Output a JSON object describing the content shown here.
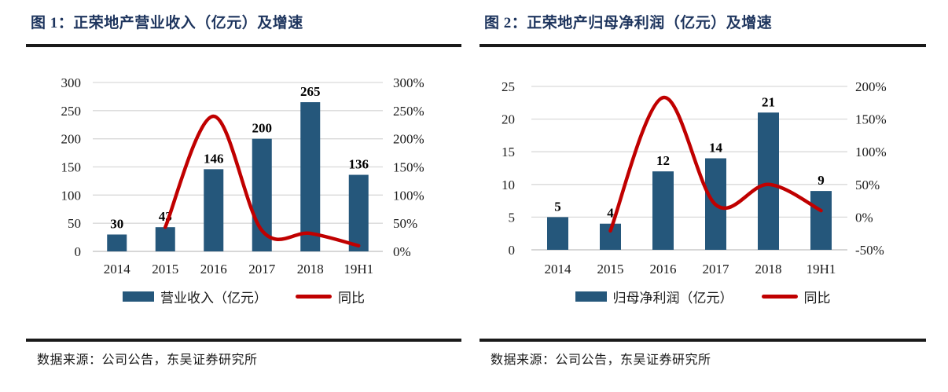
{
  "palette": {
    "bar_fill": "#25577B",
    "line_stroke": "#C00000",
    "title_color": "#1E355E",
    "grid_color": "#D9D9D9",
    "axis_color": "#BFBFBF",
    "rule_color": "#1A1A1A",
    "text_color": "#1A1A1A",
    "value_label_color": "#000000"
  },
  "charts": [
    {
      "title": "图 1：正荣地产营业收入（亿元）及增速",
      "legend": {
        "bar_label": "营业收入（亿元）",
        "line_label": "同比"
      },
      "source": "数据来源：公司公告，东吴证券研究所"
    },
    {
      "title": "图 2：正荣地产归母净利润（亿元）及增速",
      "legend": {
        "bar_label": "归母净利润（亿元）",
        "line_label": "同比"
      },
      "source": "数据来源：公司公告，东吴证券研究所"
    }
  ],
  "chart_data": [
    {
      "type": "bar+line",
      "title": "正荣地产营业收入（亿元）及增速",
      "categories": [
        "2014",
        "2015",
        "2016",
        "2017",
        "2018",
        "19H1"
      ],
      "series": [
        {
          "name": "营业收入（亿元）",
          "type": "bar",
          "axis": "left",
          "values": [
            30,
            43,
            146,
            200,
            265,
            136
          ]
        },
        {
          "name": "同比",
          "type": "line",
          "axis": "right",
          "unit": "%",
          "values": [
            null,
            43,
            240,
            37,
            32,
            10
          ]
        }
      ],
      "left_axis": {
        "min": 0,
        "max": 300,
        "step": 50,
        "labels": [
          "0",
          "50",
          "100",
          "150",
          "200",
          "250",
          "300"
        ]
      },
      "right_axis": {
        "min": 0,
        "max": 300,
        "step": 50,
        "labels": [
          "0%",
          "50%",
          "100%",
          "150%",
          "200%",
          "250%",
          "300%"
        ]
      },
      "grid": true,
      "legend_position": "bottom"
    },
    {
      "type": "bar+line",
      "title": "正荣地产归母净利润（亿元）及增速",
      "categories": [
        "2014",
        "2015",
        "2016",
        "2017",
        "2018",
        "19H1"
      ],
      "series": [
        {
          "name": "归母净利润（亿元）",
          "type": "bar",
          "axis": "left",
          "values": [
            5,
            4,
            12,
            14,
            21,
            9
          ]
        },
        {
          "name": "同比",
          "type": "line",
          "axis": "right",
          "unit": "%",
          "values": [
            null,
            -21,
            183,
            19,
            50,
            10
          ]
        }
      ],
      "left_axis": {
        "min": 0,
        "max": 25,
        "step": 5,
        "labels": [
          "0",
          "5",
          "10",
          "15",
          "20",
          "25"
        ]
      },
      "right_axis": {
        "min": -50,
        "max": 200,
        "step": 50,
        "labels": [
          "-50%",
          "0%",
          "50%",
          "100%",
          "150%",
          "200%"
        ]
      },
      "grid": true,
      "legend_position": "bottom"
    }
  ]
}
